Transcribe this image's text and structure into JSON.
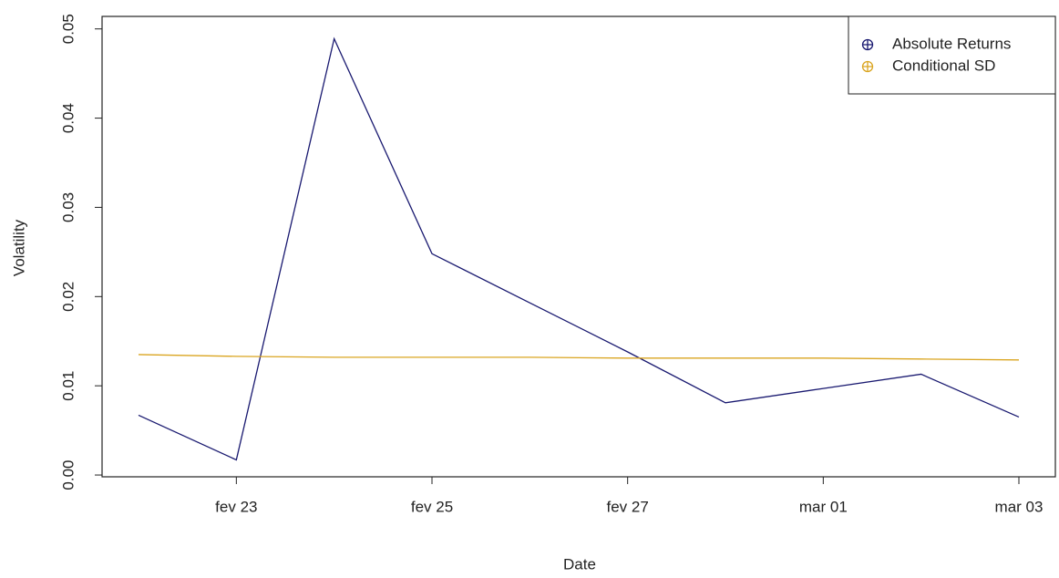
{
  "chart_data": {
    "type": "line",
    "x_label": "Date",
    "y_label": "Volatility",
    "categories": [
      null,
      "fev 23",
      null,
      "fev 25",
      null,
      "fev 27",
      null,
      "mar 01",
      null,
      "mar 03"
    ],
    "series": [
      {
        "name": "Absolute Returns",
        "color": "#191970",
        "values": [
          0.0067,
          0.0017,
          0.0489,
          0.0248,
          0.0193,
          0.0138,
          0.0081,
          0.0097,
          0.0113,
          0.0065
        ]
      },
      {
        "name": "Conditional SD",
        "color": "#DAA520",
        "values": [
          0.0135,
          0.0133,
          0.0132,
          0.0132,
          0.0132,
          0.0131,
          0.0131,
          0.0131,
          0.013,
          0.0129
        ]
      }
    ],
    "ylim": [
      -0.0002,
      0.0514
    ],
    "yticks": [
      {
        "value": 0,
        "label": "0.00"
      },
      {
        "value": 0.01,
        "label": "0.01"
      },
      {
        "value": 0.02,
        "label": "0.02"
      },
      {
        "value": 0.03,
        "label": "0.03"
      },
      {
        "value": 0.04,
        "label": "0.04"
      },
      {
        "value": 0.05,
        "label": "0.05"
      }
    ],
    "legend": "top-right"
  }
}
